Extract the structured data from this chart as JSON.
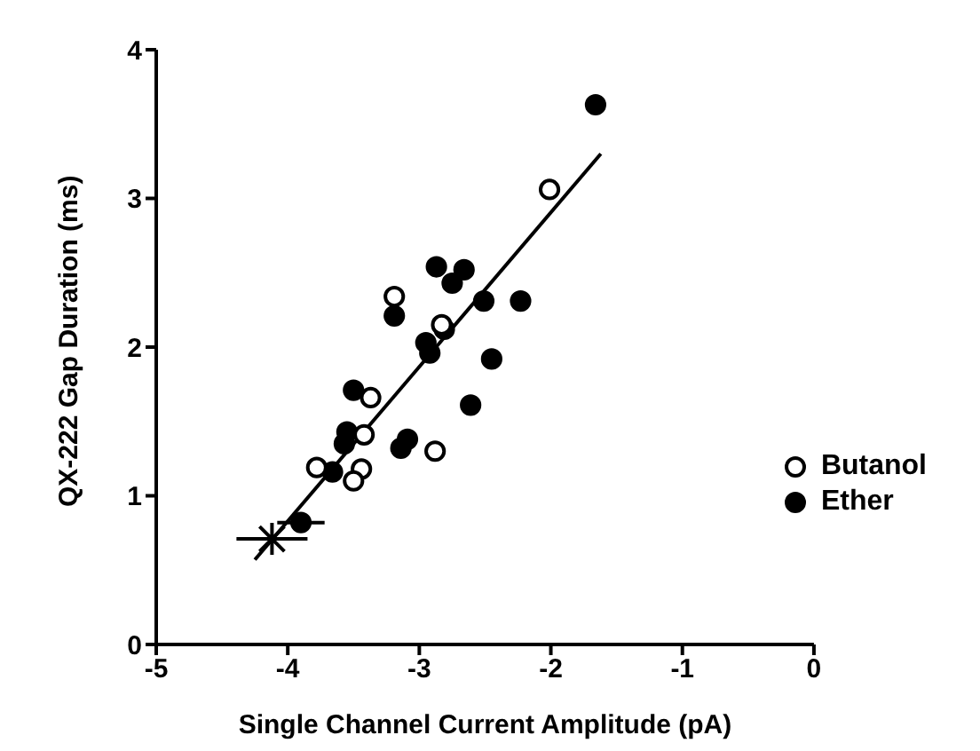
{
  "chart_data": {
    "type": "scatter",
    "xlabel": "Single Channel Current Amplitude (pA)",
    "ylabel": "QX-222 Gap Duration (ms)",
    "xlim": [
      -5,
      0
    ],
    "xticks": [
      -5,
      -4,
      -3,
      -2,
      -1,
      0
    ],
    "ylim": [
      0,
      4
    ],
    "yticks": [
      0,
      1,
      2,
      3,
      4
    ],
    "grid": false,
    "legend": "bottom right",
    "marker": "circle",
    "series": [
      {
        "name": "Butanol",
        "color": "#ffffff",
        "x": [
          -2.01,
          -3.19,
          -2.83,
          -3.37,
          -3.42,
          -3.78,
          -3.44,
          -3.5,
          -2.88
        ],
        "values": [
          3.06,
          2.34,
          2.15,
          1.66,
          1.41,
          1.19,
          1.18,
          1.1,
          1.3
        ]
      },
      {
        "name": "Ether",
        "color": "#000000",
        "x": [
          -1.66,
          -2.87,
          -2.66,
          -2.75,
          -2.51,
          -2.23,
          -3.19,
          -2.81,
          -2.95,
          -2.92,
          -2.45,
          -2.61,
          -3.5,
          -3.55,
          -3.57,
          -3.14,
          -3.09,
          -3.66,
          -3.9
        ],
        "values": [
          3.63,
          2.54,
          2.52,
          2.43,
          2.31,
          2.31,
          2.21,
          2.12,
          2.03,
          1.96,
          1.92,
          1.61,
          1.71,
          1.43,
          1.35,
          1.32,
          1.38,
          1.16,
          0.82
        ],
        "xerrors": [
          null,
          null,
          null,
          null,
          null,
          null,
          null,
          null,
          null,
          null,
          null,
          null,
          null,
          null,
          null,
          null,
          null,
          null,
          0.18
        ]
      },
      {
        "type": "scatter",
        "marker": "cross",
        "color": "#000000",
        "x": [
          -4.12
        ],
        "values": [
          0.71
        ],
        "xerrors": [
          0.27
        ]
      },
      {
        "type": "line",
        "color": "#000000",
        "marker": "none",
        "x": [
          -4.25,
          -1.62
        ],
        "values": [
          0.57,
          3.3
        ]
      }
    ]
  }
}
